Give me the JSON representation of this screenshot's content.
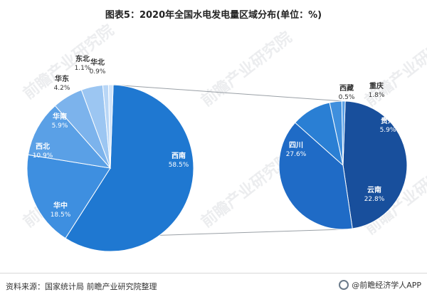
{
  "title": "图表5：2020年全国水电发电量区域分布(单位：%)",
  "source": "资料来源：国家统计局 前瞻产业研究院整理",
  "brand": "@前瞻经济学人APP",
  "watermark": "前瞻产业研究院",
  "chart_data": [
    {
      "type": "pie",
      "title": "",
      "categories": [
        "西南",
        "华中",
        "西北",
        "华南",
        "华东",
        "东北",
        "华北"
      ],
      "values": [
        58.5,
        18.5,
        10.9,
        5.9,
        4.2,
        1.1,
        0.9
      ],
      "colors": [
        "#1f78d1",
        "#3e8fe0",
        "#5aa0e6",
        "#7cb3ec",
        "#9cc6f2",
        "#b8d6f6",
        "#d0e4fa"
      ],
      "value_labels": [
        "58.5%",
        "18.5%",
        "10.9%",
        "5.9%",
        "4.2%",
        "1.1%",
        "0.9%"
      ]
    },
    {
      "type": "pie",
      "title": "",
      "categories": [
        "四川",
        "云南",
        "贵州",
        "重庆",
        "西藏"
      ],
      "values": [
        27.6,
        22.8,
        5.9,
        1.8,
        0.5
      ],
      "colors": [
        "#184f9c",
        "#1f6bc6",
        "#2a7fd4",
        "#3f8fdd",
        "#5aa0e6"
      ],
      "value_labels": [
        "27.6%",
        "22.8%",
        "5.9%",
        "1.8%",
        "0.5%"
      ]
    }
  ]
}
